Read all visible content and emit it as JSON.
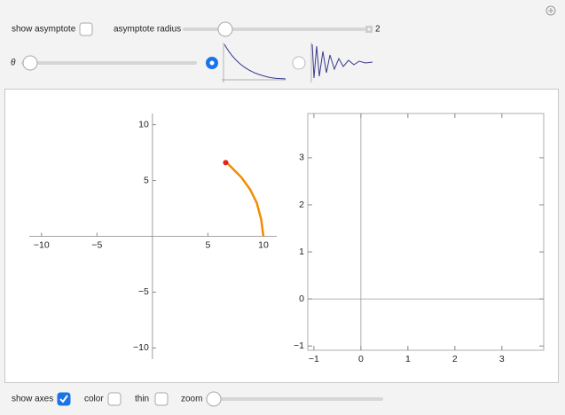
{
  "controls": {
    "show_asymptote": {
      "label": "show asymptote",
      "checked": false
    },
    "asymptote_radius": {
      "label": "asymptote radius",
      "value": 2
    },
    "theta": {
      "label": "θ"
    },
    "show_axes": {
      "label": "show axes",
      "checked": true
    },
    "color": {
      "label": "color",
      "checked": false
    },
    "thin": {
      "label": "thin",
      "checked": false
    },
    "zoom": {
      "label": "zoom"
    }
  },
  "left_plot": {
    "xlim": [
      -11.1,
      11.2
    ],
    "ylim": [
      -11,
      11
    ],
    "xticks": [
      {
        "value": -10,
        "label": "−10"
      },
      {
        "value": -5,
        "label": "−5"
      },
      5,
      10
    ],
    "yticks": [
      {
        "value": -10,
        "label": "−10"
      },
      {
        "value": -5,
        "label": "−5"
      },
      5,
      10
    ],
    "curve": {
      "color": "#f28c00",
      "x": [
        10,
        9.8,
        9.4,
        8.8,
        8,
        7.3,
        6.7
      ],
      "y": [
        0,
        1.5,
        3,
        4.2,
        5.3,
        6,
        6.6
      ]
    },
    "point": {
      "color": "#e8201b",
      "x": 6.6,
      "y": 6.6
    }
  },
  "right_plot": {
    "xlim": [
      -1.13,
      3.89
    ],
    "ylim": [
      -1.09,
      3.94
    ],
    "xticks": [
      {
        "value": -1,
        "label": "−1"
      },
      0,
      1,
      2,
      3
    ],
    "yticks": [
      {
        "value": -1,
        "label": "−1"
      },
      0,
      1,
      2,
      3
    ]
  }
}
